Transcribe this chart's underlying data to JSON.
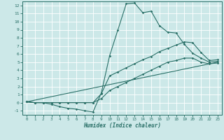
{
  "xlabel": "Humidex (Indice chaleur)",
  "bg_color": "#cce8e8",
  "grid_color": "#ffffff",
  "line_color": "#2a7068",
  "xlim": [
    -0.5,
    23.5
  ],
  "ylim": [
    -1.5,
    12.5
  ],
  "xticks": [
    0,
    1,
    2,
    3,
    4,
    5,
    6,
    7,
    8,
    9,
    10,
    11,
    12,
    13,
    14,
    15,
    16,
    17,
    18,
    19,
    20,
    21,
    22,
    23
  ],
  "yticks": [
    -1,
    0,
    1,
    2,
    3,
    4,
    5,
    6,
    7,
    8,
    9,
    10,
    11,
    12
  ],
  "curve1_x": [
    0,
    1,
    2,
    3,
    4,
    5,
    6,
    7,
    8,
    9,
    10,
    11,
    12,
    13,
    14,
    15,
    16,
    17,
    18,
    19,
    20,
    21,
    22,
    23
  ],
  "curve1_y": [
    0.1,
    0.0,
    0.0,
    -0.2,
    -0.5,
    -0.7,
    -0.8,
    -1.0,
    -1.15,
    1.2,
    5.8,
    9.0,
    12.2,
    12.3,
    11.1,
    11.3,
    9.5,
    8.7,
    8.6,
    7.2,
    6.1,
    5.5,
    5.0,
    5.1
  ],
  "curve2_x": [
    0,
    1,
    2,
    3,
    4,
    5,
    6,
    7,
    8,
    9,
    10,
    11,
    12,
    13,
    14,
    15,
    16,
    17,
    18,
    19,
    20,
    21,
    22,
    23
  ],
  "curve2_y": [
    0.1,
    0.0,
    0.0,
    0.0,
    0.0,
    0.0,
    0.0,
    0.0,
    0.0,
    0.5,
    1.5,
    2.0,
    2.5,
    3.0,
    3.5,
    4.0,
    4.5,
    5.0,
    5.2,
    5.5,
    5.5,
    5.0,
    4.8,
    4.9
  ],
  "curve3_x": [
    0,
    23
  ],
  "curve3_y": [
    0.1,
    5.0
  ],
  "curve4_x": [
    0,
    1,
    2,
    3,
    4,
    5,
    6,
    7,
    8,
    9,
    10,
    11,
    12,
    13,
    14,
    15,
    16,
    17,
    18,
    19,
    20,
    21,
    22,
    23
  ],
  "curve4_y": [
    0.1,
    0.0,
    0.0,
    0.0,
    0.0,
    0.0,
    0.0,
    0.0,
    0.0,
    1.1,
    3.3,
    3.8,
    4.3,
    4.8,
    5.3,
    5.7,
    6.3,
    6.7,
    7.1,
    7.5,
    7.4,
    6.2,
    5.2,
    5.3
  ]
}
